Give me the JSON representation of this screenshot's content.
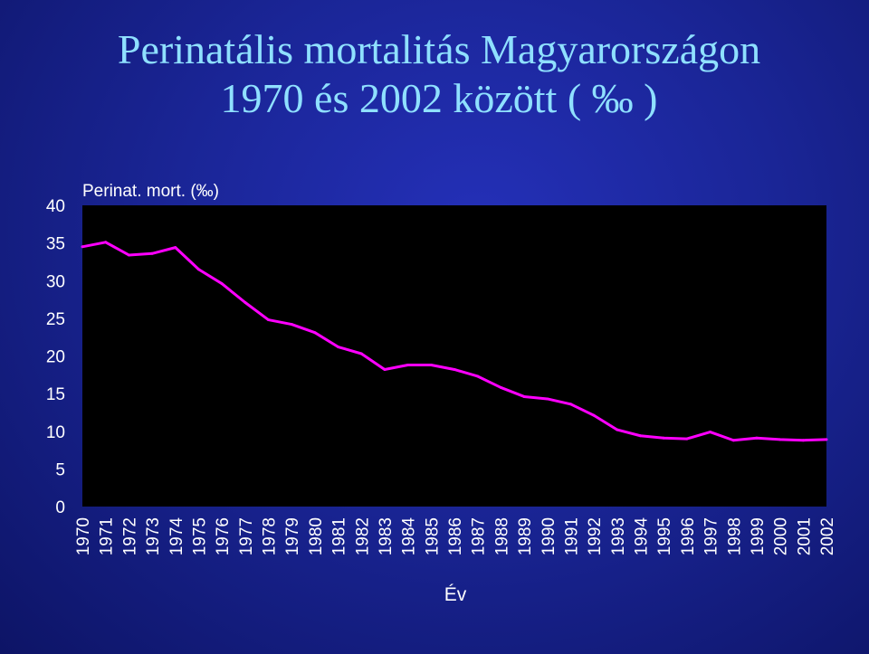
{
  "slide": {
    "title_line1": "Perinatális mortalitás Magyarországon",
    "title_line2": "1970 és 2002 között ( ‰ )"
  },
  "colors": {
    "background": "#1a2596",
    "title": "#8fe0ff",
    "plot_area": "#000000",
    "line": "#ff00ff",
    "text": "#ffffff"
  },
  "chart_data": {
    "type": "line",
    "xlabel": "Év",
    "ylabel": "",
    "ylim": [
      0,
      40
    ],
    "yticks": [
      0,
      5,
      10,
      15,
      20,
      25,
      30,
      35,
      40
    ],
    "grid": false,
    "legend": "none",
    "categories": [
      "1970",
      "1971",
      "1972",
      "1973",
      "1974",
      "1975",
      "1976",
      "1977",
      "1978",
      "1979",
      "1980",
      "1981",
      "1982",
      "1983",
      "1984",
      "1985",
      "1986",
      "1987",
      "1988",
      "1989",
      "1990",
      "1991",
      "1992",
      "1993",
      "1994",
      "1995",
      "1996",
      "1997",
      "1998",
      "1999",
      "2000",
      "2001",
      "2002"
    ],
    "series": [
      {
        "name": "Perinat. mort. (‰)",
        "values": [
          34.5,
          35.1,
          33.4,
          33.6,
          34.4,
          31.5,
          29.6,
          27.1,
          24.8,
          24.2,
          23.1,
          21.2,
          20.3,
          18.2,
          18.8,
          18.8,
          18.2,
          17.3,
          15.8,
          14.6,
          14.3,
          13.6,
          12.1,
          10.2,
          9.4,
          9.1,
          9.0,
          9.9,
          8.8,
          9.1,
          8.9,
          8.8,
          8.9
        ]
      }
    ]
  }
}
